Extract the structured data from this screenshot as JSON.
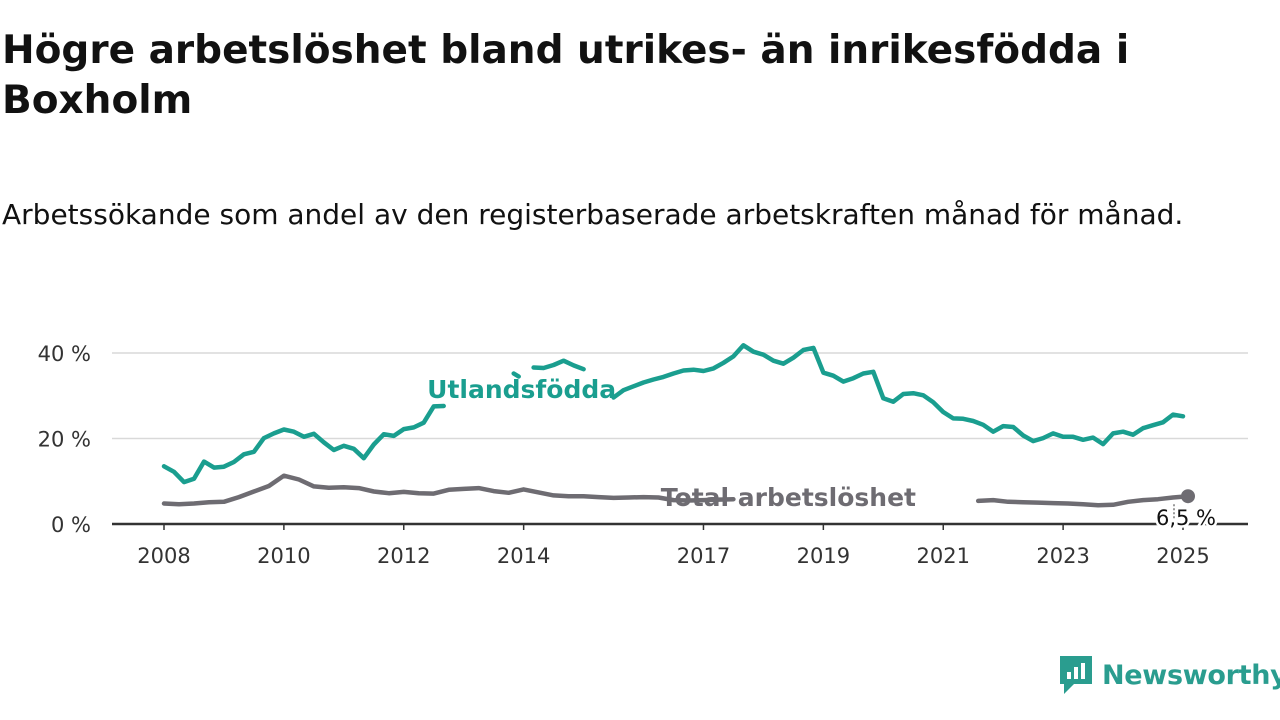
{
  "title": "Högre arbetslöshet bland utrikes- än inrikesfödda i Boxholm",
  "subtitle": "Arbetssökande som andel av den registerbaserade arbetskraften månad för månad.",
  "brand": {
    "name": "Newsworthy",
    "icon": "newsworthy-logo-icon",
    "color": "#2a9d8f"
  },
  "chart_data": {
    "type": "line",
    "title": "",
    "xlabel": "",
    "ylabel": "",
    "ylim": [
      0,
      42
    ],
    "xlim": [
      "2008-01",
      "2025-06"
    ],
    "grid": true,
    "y_ticks": [
      {
        "value": 0,
        "label": "0 %"
      },
      {
        "value": 20,
        "label": "20 %"
      },
      {
        "value": 40,
        "label": "40 %"
      }
    ],
    "x_ticks": [
      {
        "value": "2008-01",
        "label": "2008"
      },
      {
        "value": "2010-01",
        "label": "2010"
      },
      {
        "value": "2012-01",
        "label": "2012"
      },
      {
        "value": "2014-01",
        "label": "2014"
      },
      {
        "value": "2017-01",
        "label": "2017"
      },
      {
        "value": "2019-01",
        "label": "2019"
      },
      {
        "value": "2021-01",
        "label": "2021"
      },
      {
        "value": "2023-01",
        "label": "2023"
      },
      {
        "value": "2025-01",
        "label": "2025"
      }
    ],
    "series": [
      {
        "name": "Utlandsfödda",
        "color": "#1a9e8f",
        "label_at": "2014-01",
        "points": [
          [
            "2008-01",
            13.5
          ],
          [
            "2008-03",
            12.2
          ],
          [
            "2008-05",
            9.8
          ],
          [
            "2008-07",
            10.6
          ],
          [
            "2008-09",
            14.6
          ],
          [
            "2008-11",
            13.2
          ],
          [
            "2009-01",
            13.4
          ],
          [
            "2009-03",
            14.5
          ],
          [
            "2009-05",
            16.3
          ],
          [
            "2009-07",
            16.9
          ],
          [
            "2009-09",
            20.1
          ],
          [
            "2009-11",
            21.2
          ],
          [
            "2010-01",
            22.1
          ],
          [
            "2010-03",
            21.6
          ],
          [
            "2010-05",
            20.4
          ],
          [
            "2010-07",
            21.1
          ],
          [
            "2010-09",
            19.1
          ],
          [
            "2010-11",
            17.3
          ],
          [
            "2011-01",
            18.3
          ],
          [
            "2011-03",
            17.6
          ],
          [
            "2011-05",
            15.4
          ],
          [
            "2011-07",
            18.6
          ],
          [
            "2011-09",
            21.0
          ],
          [
            "2011-11",
            20.6
          ],
          [
            "2012-01",
            22.2
          ],
          [
            "2012-03",
            22.6
          ],
          [
            "2012-05",
            23.7
          ],
          [
            "2012-07",
            27.5
          ],
          [
            "2012-09",
            27.6
          ],
          [
            null,
            null
          ],
          [
            "2013-11",
            35.2
          ],
          [
            "2013-12",
            34.5
          ],
          [
            null,
            null
          ],
          [
            "2014-03",
            36.6
          ],
          [
            "2014-05",
            36.5
          ],
          [
            "2014-07",
            37.2
          ],
          [
            "2014-09",
            38.2
          ],
          [
            "2014-11",
            37.1
          ],
          [
            "2015-01",
            36.2
          ],
          [
            null,
            null
          ],
          [
            "2015-07",
            29.6
          ],
          [
            "2015-09",
            31.3
          ],
          [
            "2015-11",
            32.2
          ],
          [
            "2016-01",
            33.1
          ],
          [
            "2016-03",
            33.8
          ],
          [
            "2016-05",
            34.4
          ],
          [
            "2016-07",
            35.2
          ],
          [
            "2016-09",
            35.9
          ],
          [
            "2016-11",
            36.1
          ],
          [
            "2017-01",
            35.8
          ],
          [
            "2017-03",
            36.4
          ],
          [
            "2017-05",
            37.7
          ],
          [
            "2017-07",
            39.2
          ],
          [
            "2017-09",
            41.8
          ],
          [
            "2017-11",
            40.3
          ],
          [
            "2018-01",
            39.6
          ],
          [
            "2018-03",
            38.2
          ],
          [
            "2018-05",
            37.5
          ],
          [
            "2018-07",
            38.9
          ],
          [
            "2018-09",
            40.7
          ],
          [
            "2018-11",
            41.2
          ],
          [
            "2019-01",
            35.4
          ],
          [
            "2019-03",
            34.7
          ],
          [
            "2019-05",
            33.3
          ],
          [
            "2019-07",
            34.1
          ],
          [
            "2019-09",
            35.2
          ],
          [
            "2019-11",
            35.6
          ],
          [
            "2020-01",
            29.4
          ],
          [
            "2020-03",
            28.6
          ],
          [
            "2020-05",
            30.4
          ],
          [
            "2020-07",
            30.6
          ],
          [
            "2020-09",
            30.1
          ],
          [
            "2020-11",
            28.5
          ],
          [
            "2021-01",
            26.2
          ],
          [
            "2021-03",
            24.7
          ],
          [
            "2021-05",
            24.6
          ],
          [
            "2021-07",
            24.1
          ],
          [
            "2021-09",
            23.2
          ],
          [
            "2021-11",
            21.6
          ],
          [
            "2022-01",
            22.9
          ],
          [
            "2022-03",
            22.7
          ],
          [
            "2022-05",
            20.7
          ],
          [
            "2022-07",
            19.4
          ],
          [
            "2022-09",
            20.1
          ],
          [
            "2022-11",
            21.2
          ],
          [
            "2023-01",
            20.4
          ],
          [
            "2023-03",
            20.4
          ],
          [
            "2023-05",
            19.7
          ],
          [
            "2023-07",
            20.2
          ],
          [
            "2023-09",
            18.7
          ],
          [
            "2023-11",
            21.2
          ],
          [
            "2024-01",
            21.6
          ],
          [
            "2024-03",
            20.9
          ],
          [
            "2024-05",
            22.4
          ],
          [
            "2024-07",
            23.1
          ],
          [
            "2024-09",
            23.8
          ],
          [
            "2024-11",
            25.6
          ],
          [
            "2025-01",
            25.2
          ]
        ]
      },
      {
        "name": "Total arbetslöshet",
        "color": "#6e6c72",
        "label_at": "2018-04",
        "last_value_label": "6,5 %",
        "points": [
          [
            "2008-01",
            4.8
          ],
          [
            "2008-04",
            4.6
          ],
          [
            "2008-07",
            4.8
          ],
          [
            "2008-10",
            5.1
          ],
          [
            "2009-01",
            5.2
          ],
          [
            "2009-04",
            6.3
          ],
          [
            "2009-07",
            7.6
          ],
          [
            "2009-10",
            8.9
          ],
          [
            "2010-01",
            11.3
          ],
          [
            "2010-04",
            10.4
          ],
          [
            "2010-07",
            8.8
          ],
          [
            "2010-10",
            8.5
          ],
          [
            "2011-01",
            8.6
          ],
          [
            "2011-04",
            8.4
          ],
          [
            "2011-07",
            7.6
          ],
          [
            "2011-10",
            7.2
          ],
          [
            "2012-01",
            7.5
          ],
          [
            "2012-04",
            7.2
          ],
          [
            "2012-07",
            7.1
          ],
          [
            "2012-10",
            8.0
          ],
          [
            "2013-01",
            8.2
          ],
          [
            "2013-04",
            8.4
          ],
          [
            "2013-07",
            7.7
          ],
          [
            "2013-10",
            7.3
          ],
          [
            "2014-01",
            8.1
          ],
          [
            "2014-04",
            7.4
          ],
          [
            "2014-07",
            6.7
          ],
          [
            "2014-10",
            6.5
          ],
          [
            "2015-01",
            6.5
          ],
          [
            "2015-04",
            6.3
          ],
          [
            "2015-07",
            6.1
          ],
          [
            "2015-10",
            6.2
          ],
          [
            "2016-01",
            6.3
          ],
          [
            "2016-04",
            6.2
          ],
          [
            "2016-07",
            5.6
          ],
          [
            "2016-10",
            5.5
          ],
          [
            "2017-01",
            5.6
          ],
          [
            "2017-04",
            5.7
          ],
          [
            "2017-07",
            5.8
          ],
          [
            null,
            null
          ],
          [
            "2021-08",
            5.4
          ],
          [
            "2021-11",
            5.6
          ],
          [
            "2022-02",
            5.2
          ],
          [
            "2022-05",
            5.1
          ],
          [
            "2022-08",
            5.0
          ],
          [
            "2022-11",
            4.9
          ],
          [
            "2023-02",
            4.8
          ],
          [
            "2023-05",
            4.6
          ],
          [
            "2023-08",
            4.4
          ],
          [
            "2023-11",
            4.5
          ],
          [
            "2024-02",
            5.2
          ],
          [
            "2024-05",
            5.6
          ],
          [
            "2024-08",
            5.8
          ],
          [
            "2024-11",
            6.2
          ],
          [
            "2025-02",
            6.5
          ]
        ]
      }
    ]
  }
}
